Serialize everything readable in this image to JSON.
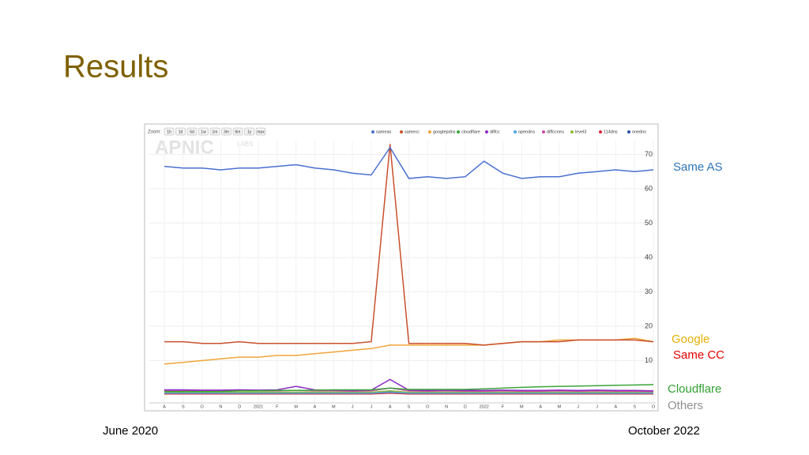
{
  "slide": {
    "title": "Results",
    "start_label": "June 2020",
    "end_label": "October 2022"
  },
  "chart_data": {
    "type": "line",
    "zoom_label": "Zoom:",
    "zoom_buttons": [
      "1h",
      "1d",
      "5d",
      "1w",
      "1m",
      "3m",
      "6m",
      "1y",
      "max"
    ],
    "watermark": [
      "APNIC",
      "LABS"
    ],
    "categories": [
      "A",
      "S",
      "O",
      "N",
      "D",
      "2021",
      "F",
      "M",
      "A",
      "M",
      "J",
      "J",
      "A",
      "S",
      "O",
      "N",
      "D",
      "2022",
      "F",
      "M",
      "A",
      "M",
      "J",
      "J",
      "A",
      "S",
      "O"
    ],
    "ylim": [
      0,
      74
    ],
    "yticks": [
      10,
      20,
      30,
      40,
      50,
      60,
      70
    ],
    "grid": true,
    "series": [
      {
        "name": "sameas",
        "color": "#4a6fcf",
        "values": [
          66.5,
          66,
          66,
          65.5,
          66,
          66,
          66.5,
          67,
          66,
          65.5,
          64.5,
          64,
          72,
          63,
          63.5,
          63,
          63.5,
          68,
          64.5,
          63,
          63.5,
          63.5,
          64.5,
          65,
          65.5,
          65,
          65.5
        ]
      },
      {
        "name": "samecc",
        "color": "#c8502c",
        "values": [
          15.5,
          15.5,
          15,
          15,
          15.5,
          15,
          15,
          15,
          15,
          15,
          15,
          15.5,
          73,
          15,
          15,
          15,
          15,
          14.5,
          15,
          15.5,
          15.5,
          15.5,
          16,
          16,
          16,
          16,
          15.5
        ]
      },
      {
        "name": "googlepdns",
        "color": "#f0a53a",
        "values": [
          9,
          9.5,
          10,
          10.5,
          11,
          11,
          11.5,
          11.5,
          12,
          12.5,
          13,
          13.5,
          14.5,
          14.5,
          14.5,
          14.5,
          14.5,
          14.5,
          15,
          15.5,
          15.5,
          16,
          16,
          16,
          16,
          16.5,
          15.5
        ]
      },
      {
        "name": "cloudflare",
        "color": "#3aa53a",
        "values": [
          1,
          1,
          1,
          1,
          1.2,
          1.2,
          1.3,
          1.3,
          1.4,
          1.5,
          1.5,
          1.5,
          2,
          1.6,
          1.6,
          1.6,
          1.6,
          1.8,
          2,
          2.2,
          2.4,
          2.5,
          2.6,
          2.7,
          2.8,
          2.9,
          3
        ]
      },
      {
        "name": "diffcc",
        "color": "#8e2bc4",
        "values": [
          1.5,
          1.5,
          1.4,
          1.4,
          1.5,
          1.4,
          1.5,
          2.5,
          1.5,
          1.4,
          1.3,
          1.4,
          4.5,
          1.4,
          1.3,
          1.4,
          1.3,
          1.3,
          1.4,
          1.3,
          1.3,
          1.4,
          1.3,
          1.4,
          1.3,
          1.3,
          1.2
        ]
      },
      {
        "name": "opendns",
        "color": "#4aa8dc",
        "values": [
          0.5,
          0.5,
          0.5,
          0.5,
          0.5,
          0.5,
          0.5,
          0.5,
          0.5,
          0.5,
          0.5,
          0.5,
          0.8,
          0.5,
          0.5,
          0.5,
          0.5,
          0.5,
          0.5,
          0.5,
          0.5,
          0.5,
          0.5,
          0.5,
          0.5,
          0.5,
          0.5
        ]
      },
      {
        "name": "diffccneu",
        "color": "#cc4aa8",
        "values": [
          1.2,
          1.2,
          1.2,
          1.1,
          1.2,
          1.2,
          1.2,
          1.3,
          1.2,
          1.2,
          1.1,
          1.2,
          2,
          1.2,
          1.1,
          1.2,
          1.1,
          1.1,
          1.2,
          1.1,
          1.1,
          1.2,
          1.1,
          1.2,
          1.1,
          1.1,
          1
        ]
      },
      {
        "name": "level3",
        "color": "#8cba3a",
        "values": [
          0.8,
          0.8,
          0.8,
          0.8,
          0.8,
          0.8,
          0.8,
          0.8,
          0.8,
          0.8,
          0.8,
          0.8,
          1.2,
          0.8,
          0.8,
          0.8,
          0.8,
          0.8,
          0.8,
          0.8,
          0.8,
          0.8,
          0.8,
          0.8,
          0.8,
          0.8,
          0.8
        ]
      },
      {
        "name": "114dns",
        "color": "#d8283c",
        "values": [
          0.3,
          0.3,
          0.3,
          0.3,
          0.3,
          0.3,
          0.3,
          0.3,
          0.3,
          0.3,
          0.3,
          0.3,
          0.5,
          0.3,
          0.3,
          0.3,
          0.3,
          0.3,
          0.3,
          0.3,
          0.3,
          0.3,
          0.3,
          0.3,
          0.3,
          0.3,
          0.3
        ]
      },
      {
        "name": "onedns",
        "color": "#2e4fa8",
        "values": [
          0.6,
          0.6,
          0.6,
          0.6,
          0.6,
          0.6,
          0.6,
          0.6,
          0.6,
          0.6,
          0.6,
          0.6,
          0.9,
          0.6,
          0.6,
          0.6,
          0.6,
          0.6,
          0.6,
          0.6,
          0.6,
          0.6,
          0.6,
          0.6,
          0.6,
          0.6,
          0.6
        ]
      }
    ],
    "annotations": [
      {
        "text": "Same AS",
        "color": "#2e75b6"
      },
      {
        "text": "Google",
        "color": "#e6b000"
      },
      {
        "text": "Same CC",
        "color": "#e00000"
      },
      {
        "text": "Cloudflare",
        "color": "#33a033"
      },
      {
        "text": "Others",
        "color": "#909090"
      }
    ]
  }
}
